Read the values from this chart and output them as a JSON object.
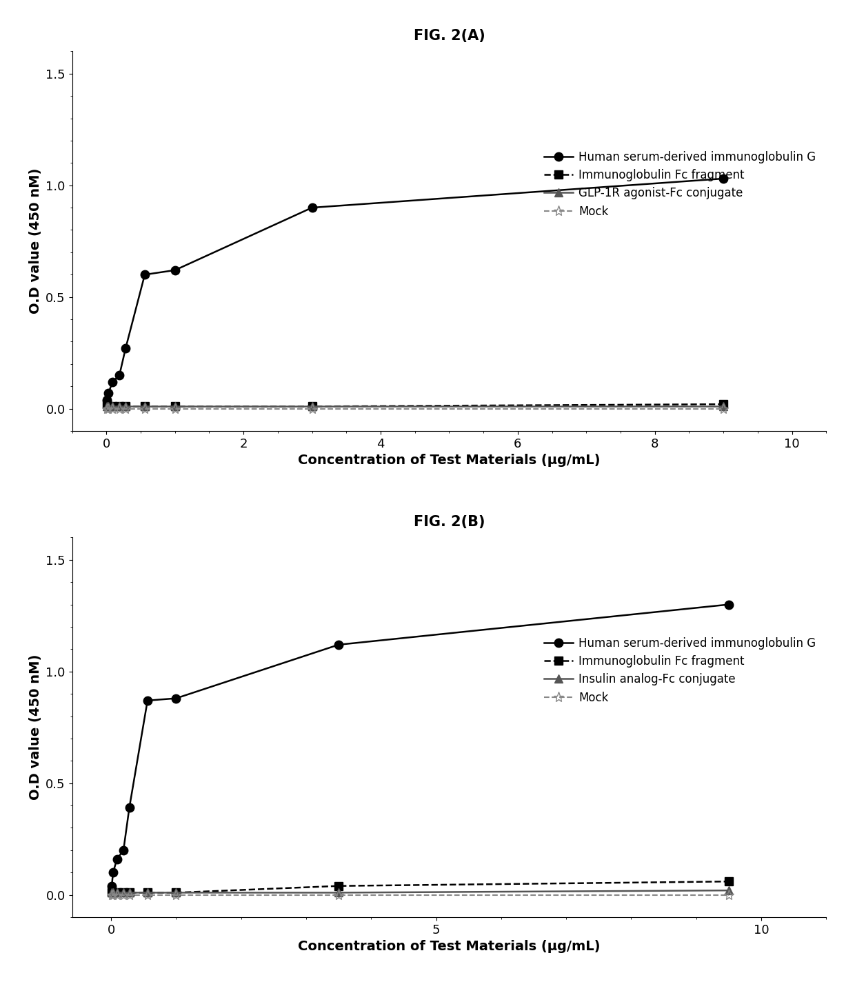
{
  "figA": {
    "title": "FIG. 2(A)",
    "xlabel": "Concentration of Test Materials (μg/mL)",
    "ylabel": "O.D value (450 nM)",
    "xlim": [
      -0.5,
      10.5
    ],
    "ylim": [
      -0.1,
      1.6
    ],
    "xticks": [
      0,
      2,
      4,
      6,
      8,
      10
    ],
    "yticks": [
      0.0,
      0.5,
      1.0,
      1.5
    ],
    "series": [
      {
        "label": "Human serum-derived immunoglobulin G",
        "x": [
          0.01,
          0.03,
          0.09,
          0.19,
          0.28,
          0.56,
          1.0,
          3.0,
          9.0
        ],
        "y": [
          0.04,
          0.07,
          0.12,
          0.15,
          0.27,
          0.6,
          0.62,
          0.9,
          1.03
        ],
        "linestyle": "-",
        "marker": "o",
        "color": "#000000",
        "markersize": 9,
        "linewidth": 1.8
      },
      {
        "label": "Immunoglobulin Fc fragment",
        "x": [
          0.01,
          0.03,
          0.09,
          0.19,
          0.28,
          0.56,
          1.0,
          3.0,
          9.0
        ],
        "y": [
          0.02,
          0.01,
          0.01,
          0.01,
          0.01,
          0.01,
          0.01,
          0.01,
          0.02
        ],
        "linestyle": "--",
        "marker": "s",
        "color": "#000000",
        "markersize": 9,
        "linewidth": 1.8
      },
      {
        "label": "GLP-1R agonist-Fc conjugate",
        "x": [
          0.01,
          0.03,
          0.09,
          0.19,
          0.28,
          0.56,
          1.0,
          3.0,
          9.0
        ],
        "y": [
          0.01,
          0.01,
          0.01,
          0.01,
          0.01,
          0.01,
          0.01,
          0.01,
          0.01
        ],
        "linestyle": "-",
        "marker": "^",
        "color": "#555555",
        "markersize": 9,
        "linewidth": 1.8
      },
      {
        "label": "Mock",
        "x": [
          0.01,
          0.03,
          0.09,
          0.19,
          0.28,
          0.56,
          1.0,
          3.0,
          9.0
        ],
        "y": [
          0.0,
          0.0,
          0.0,
          0.0,
          0.0,
          0.0,
          0.0,
          0.0,
          0.0
        ],
        "linestyle": "--",
        "marker": "*",
        "color": "#888888",
        "markersize": 11,
        "linewidth": 1.5
      }
    ]
  },
  "figB": {
    "title": "FIG. 2(B)",
    "xlabel": "Concentration of Test Materials (μg/mL)",
    "ylabel": "O.D value (450 nM)",
    "xlim": [
      -0.6,
      11.0
    ],
    "ylim": [
      -0.1,
      1.6
    ],
    "xticks": [
      0,
      5,
      10
    ],
    "yticks": [
      0.0,
      0.5,
      1.0,
      1.5
    ],
    "series": [
      {
        "label": "Human serum-derived immunoglobulin G",
        "x": [
          0.01,
          0.03,
          0.09,
          0.19,
          0.28,
          0.56,
          1.0,
          3.5,
          9.5
        ],
        "y": [
          0.04,
          0.1,
          0.16,
          0.2,
          0.39,
          0.87,
          0.88,
          1.12,
          1.3
        ],
        "linestyle": "-",
        "marker": "o",
        "color": "#000000",
        "markersize": 9,
        "linewidth": 1.8
      },
      {
        "label": "Immunoglobulin Fc fragment",
        "x": [
          0.01,
          0.03,
          0.09,
          0.19,
          0.28,
          0.56,
          1.0,
          3.5,
          9.5
        ],
        "y": [
          0.01,
          0.01,
          0.01,
          0.01,
          0.01,
          0.01,
          0.01,
          0.04,
          0.06
        ],
        "linestyle": "--",
        "marker": "s",
        "color": "#000000",
        "markersize": 9,
        "linewidth": 1.8
      },
      {
        "label": "Insulin analog-Fc conjugate",
        "x": [
          0.01,
          0.03,
          0.09,
          0.19,
          0.28,
          0.56,
          1.0,
          3.5,
          9.5
        ],
        "y": [
          0.01,
          0.01,
          0.01,
          0.01,
          0.01,
          0.01,
          0.01,
          0.01,
          0.02
        ],
        "linestyle": "-",
        "marker": "^",
        "color": "#555555",
        "markersize": 9,
        "linewidth": 1.8
      },
      {
        "label": "Mock",
        "x": [
          0.01,
          0.03,
          0.09,
          0.19,
          0.28,
          0.56,
          1.0,
          3.5,
          9.5
        ],
        "y": [
          0.0,
          0.0,
          0.0,
          0.0,
          0.0,
          0.0,
          0.0,
          0.0,
          0.0
        ],
        "linestyle": "--",
        "marker": "*",
        "color": "#888888",
        "markersize": 11,
        "linewidth": 1.5
      }
    ]
  },
  "background_color": "#ffffff",
  "legend_fontsize": 12,
  "axis_label_fontsize": 14,
  "tick_fontsize": 13,
  "title_fontsize": 15
}
